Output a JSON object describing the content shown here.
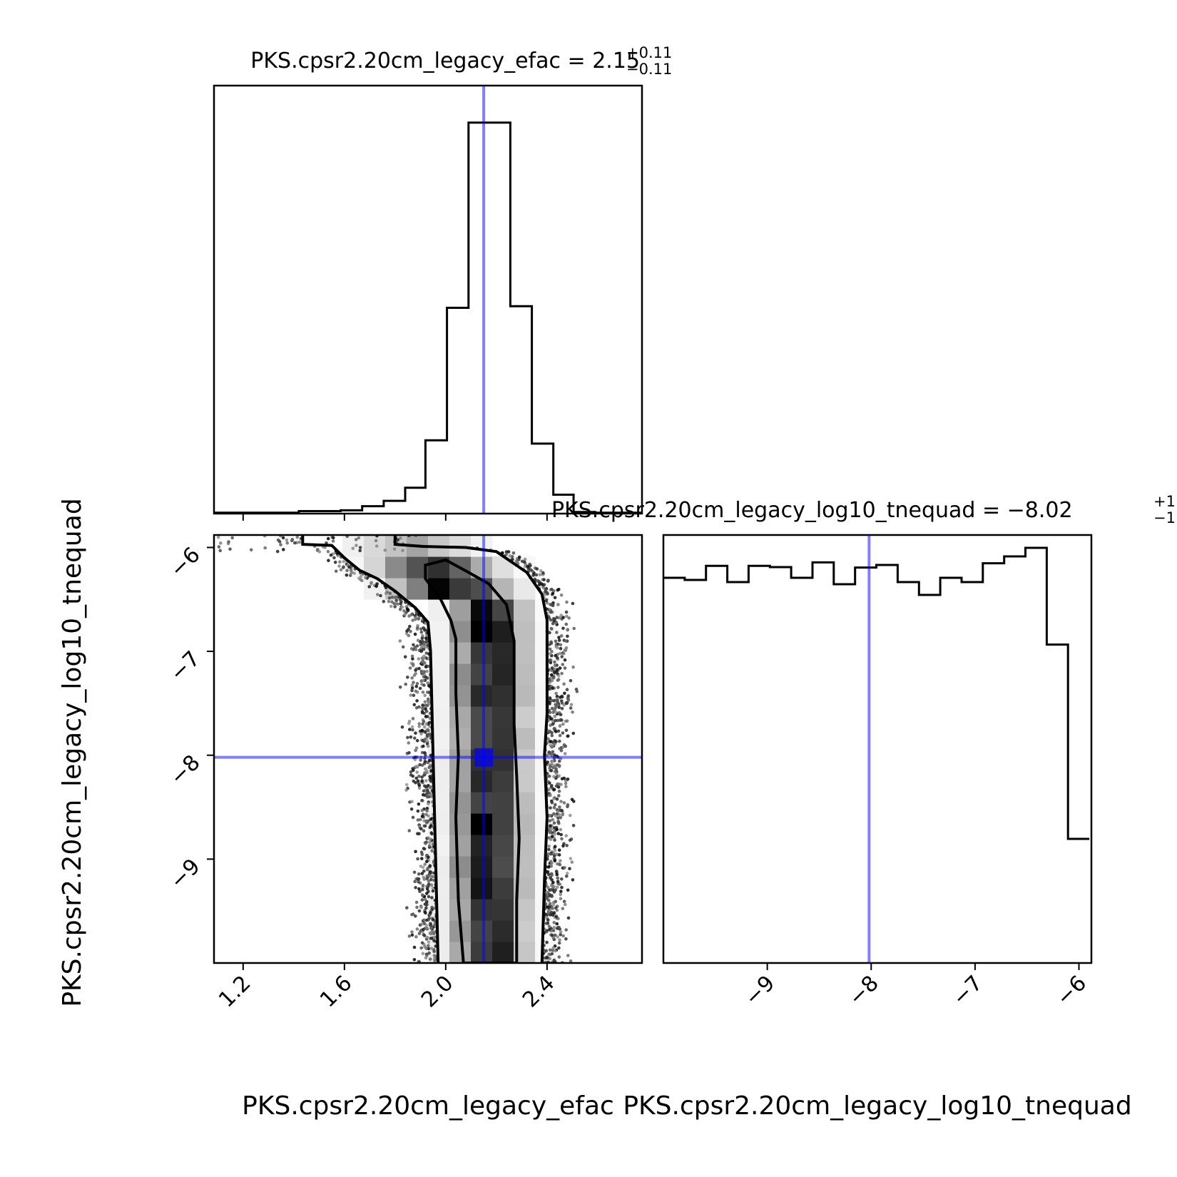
{
  "chart_data": [
    {
      "type": "histogram",
      "panel": "efac-marginal",
      "title": "PKS.cpsr2.20cm_legacy_efac = 2.15",
      "title_value": "2.15",
      "title_upper": "+0.11",
      "title_lower": "−0.11",
      "xlim": [
        1.085,
        2.775
      ],
      "bin_edges": [
        1.085,
        1.17,
        1.25,
        1.335,
        1.42,
        1.505,
        1.585,
        1.67,
        1.755,
        1.84,
        1.92,
        2.005,
        2.09,
        2.17,
        2.255,
        2.34,
        2.425,
        2.505,
        2.59,
        2.675,
        2.775
      ],
      "counts": [
        0.002,
        0.002,
        0.002,
        0.002,
        0.006,
        0.006,
        0.008,
        0.018,
        0.031,
        0.063,
        0.178,
        0.5,
        0.95,
        0.95,
        0.504,
        0.17,
        0.046,
        0.004,
        0.002,
        0.002
      ],
      "ymax": 1.04,
      "truth": 2.15,
      "xticks": [
        1.2,
        1.6,
        2.0,
        2.4
      ],
      "xticks_shown": false,
      "yticks_shown": false
    },
    {
      "type": "scatter-density",
      "panel": "efac-vs-log10-tnequad",
      "xlabel": "PKS.cpsr2.20cm_legacy_efac",
      "ylabel": "PKS.cpsr2.20cm_legacy_log10_tnequad",
      "xlim": [
        1.085,
        2.775
      ],
      "ylim": [
        -10.0,
        -5.88
      ],
      "xticks": [
        "1.2",
        "1.6",
        "2.0",
        "2.4"
      ],
      "yticks": [
        "−9",
        "−8",
        "−7",
        "−6"
      ],
      "ytick_values": [
        -9,
        -8,
        -7,
        -6
      ],
      "truth": [
        2.15,
        -8.02
      ],
      "outer_contour": {
        "left": [
          [
            1.435,
            -5.88
          ],
          [
            1.435,
            -5.97
          ],
          [
            1.55,
            -5.98
          ],
          [
            1.6,
            -6.1
          ],
          [
            1.66,
            -6.22
          ],
          [
            1.73,
            -6.3
          ],
          [
            1.8,
            -6.42
          ],
          [
            1.88,
            -6.58
          ],
          [
            1.93,
            -6.72
          ],
          [
            1.94,
            -7.0
          ],
          [
            1.95,
            -8.0
          ],
          [
            1.96,
            -9.0
          ],
          [
            1.97,
            -10.0
          ]
        ],
        "right": [
          [
            1.8,
            -5.88
          ],
          [
            1.8,
            -5.97
          ],
          [
            1.91,
            -5.99
          ],
          [
            2.08,
            -6.0
          ],
          [
            2.2,
            -6.04
          ],
          [
            2.32,
            -6.24
          ],
          [
            2.38,
            -6.45
          ],
          [
            2.4,
            -6.7
          ],
          [
            2.4,
            -7.6
          ],
          [
            2.39,
            -8.0
          ],
          [
            2.4,
            -8.6
          ],
          [
            2.39,
            -9.2
          ],
          [
            2.38,
            -10.0
          ]
        ]
      },
      "inner_contour": [
        [
          1.92,
          -6.17
        ],
        [
          2.0,
          -6.12
        ],
        [
          2.09,
          -6.24
        ],
        [
          2.17,
          -6.35
        ],
        [
          2.24,
          -6.55
        ],
        [
          2.27,
          -6.9
        ],
        [
          2.27,
          -7.7
        ],
        [
          2.28,
          -8.2
        ],
        [
          2.29,
          -8.8
        ],
        [
          2.28,
          -9.4
        ],
        [
          2.28,
          -10.0
        ],
        [
          2.07,
          -10.0
        ],
        [
          2.05,
          -9.4
        ],
        [
          2.04,
          -8.6
        ],
        [
          2.05,
          -8.0
        ],
        [
          2.04,
          -7.4
        ],
        [
          2.04,
          -6.88
        ],
        [
          2.02,
          -6.7
        ],
        [
          1.98,
          -6.5
        ],
        [
          1.92,
          -6.3
        ]
      ]
    },
    {
      "type": "histogram",
      "panel": "log10-tnequad-marginal",
      "title": "PKS.cpsr2.20cm_legacy_log10_tnequad = −8.02",
      "title_value": "−8.02",
      "title_upper": "+1",
      "title_lower": "−1",
      "xlabel": "PKS.cpsr2.20cm_legacy_log10_tnequad",
      "xlim": [
        -10.0,
        -5.88
      ],
      "bin_edges": [
        -10.0,
        -9.795,
        -9.59,
        -9.385,
        -9.18,
        -8.975,
        -8.77,
        -8.565,
        -8.36,
        -8.155,
        -7.95,
        -7.745,
        -7.54,
        -7.335,
        -7.13,
        -6.925,
        -6.72,
        -6.515,
        -6.31,
        -6.105,
        -5.9
      ],
      "counts": [
        0.9,
        0.895,
        0.928,
        0.89,
        0.928,
        0.925,
        0.9,
        0.936,
        0.885,
        0.924,
        0.93,
        0.89,
        0.86,
        0.9,
        0.89,
        0.934,
        0.95,
        0.97,
        0.744,
        0.29
      ],
      "ymax": 1.0,
      "truth": -8.02,
      "xticks": [
        "−9",
        "−8",
        "−7",
        "−6"
      ],
      "xtick_values": [
        -9,
        -8,
        -7,
        -6
      ]
    }
  ],
  "colors": {
    "truth": "#0000ff",
    "truth_alpha": 0.5,
    "line": "#000000",
    "background": "#ffffff"
  }
}
